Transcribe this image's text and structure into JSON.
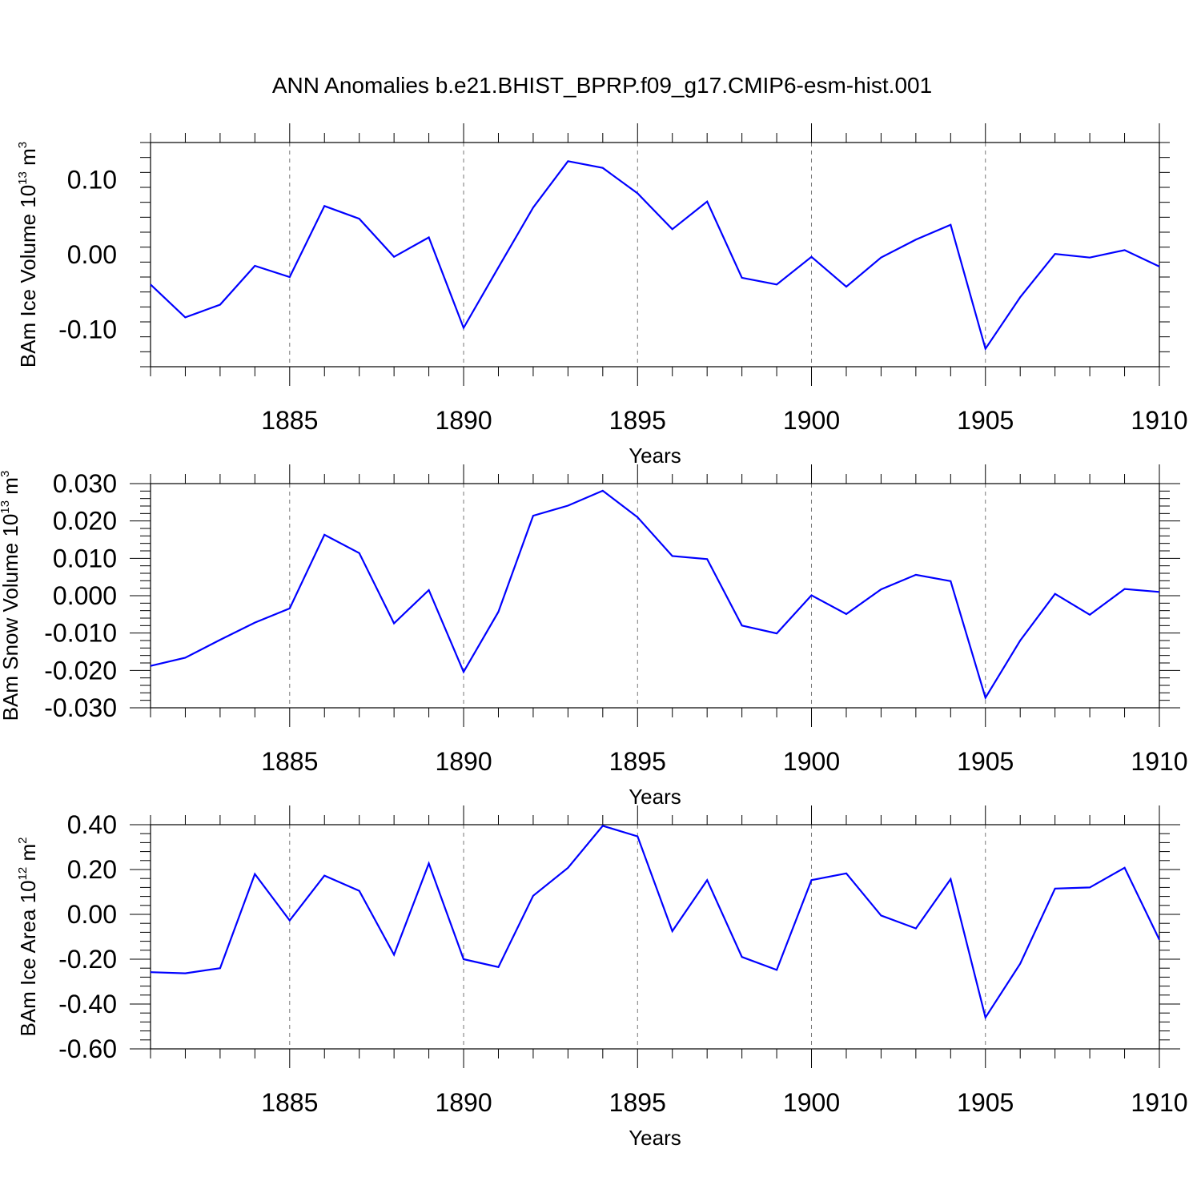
{
  "figure": {
    "title": "ANN Anomalies b.e21.BHIST_BPRP.f09_g17.CMIP6-esm-hist.001",
    "line_color": "#0000ff",
    "grid_color": "#777777"
  },
  "chart_data": [
    {
      "type": "line",
      "xlabel": "Years",
      "ylabel": {
        "text": "BAm Ice Volume 10",
        "exponent": "13",
        "unit": "m",
        "unit_exponent": "3"
      },
      "xlim": [
        1881,
        1910
      ],
      "ylim": [
        -0.15,
        0.15
      ],
      "x_ticks": [
        1885,
        1890,
        1895,
        1900,
        1905,
        1910
      ],
      "y_ticks": [
        -0.1,
        0.0,
        0.1
      ],
      "y_tick_labels": [
        "-0.10",
        "0.00",
        "0.10"
      ],
      "x_gridlines": [
        1885,
        1890,
        1895,
        1900,
        1905
      ],
      "x": [
        1881,
        1882,
        1883,
        1884,
        1885,
        1886,
        1887,
        1888,
        1889,
        1890,
        1891,
        1892,
        1893,
        1894,
        1895,
        1896,
        1897,
        1898,
        1899,
        1900,
        1901,
        1902,
        1903,
        1904,
        1905,
        1906,
        1907,
        1908,
        1909,
        1910
      ],
      "series": [
        {
          "values": [
            -0.04,
            -0.084,
            -0.067,
            -0.015,
            -0.03,
            0.065,
            0.048,
            -0.003,
            0.023,
            -0.098,
            -0.017,
            0.063,
            0.125,
            0.116,
            0.082,
            0.034,
            0.071,
            -0.031,
            -0.04,
            -0.003,
            -0.043,
            -0.004,
            0.02,
            0.04,
            -0.126,
            -0.057,
            0.001,
            -0.004,
            0.006,
            -0.016
          ]
        }
      ]
    },
    {
      "type": "line",
      "xlabel": "Years",
      "ylabel": {
        "text": "BAm Snow Volume 10",
        "exponent": "13",
        "unit": "m",
        "unit_exponent": "3"
      },
      "xlim": [
        1881,
        1910
      ],
      "ylim": [
        -0.03,
        0.03
      ],
      "x_ticks": [
        1885,
        1890,
        1895,
        1900,
        1905,
        1910
      ],
      "y_ticks": [
        -0.03,
        -0.02,
        -0.01,
        0.0,
        0.01,
        0.02,
        0.03
      ],
      "y_tick_labels": [
        "-0.030",
        "-0.020",
        "-0.010",
        "0.000",
        "0.010",
        "0.020",
        "0.030"
      ],
      "x_gridlines": [
        1885,
        1890,
        1895,
        1900,
        1905
      ],
      "x": [
        1881,
        1882,
        1883,
        1884,
        1885,
        1886,
        1887,
        1888,
        1889,
        1890,
        1891,
        1892,
        1893,
        1894,
        1895,
        1896,
        1897,
        1898,
        1899,
        1900,
        1901,
        1902,
        1903,
        1904,
        1905,
        1906,
        1907,
        1908,
        1909,
        1910
      ],
      "series": [
        {
          "values": [
            -0.0188,
            -0.0166,
            -0.0118,
            -0.0072,
            -0.0034,
            0.0163,
            0.0114,
            -0.0074,
            0.0015,
            -0.0204,
            -0.0043,
            0.0214,
            0.0241,
            0.0281,
            0.021,
            0.0106,
            0.0098,
            -0.008,
            -0.0101,
            0.0001,
            -0.0049,
            0.0017,
            0.0056,
            0.0039,
            -0.0273,
            -0.012,
            0.0005,
            -0.0051,
            0.0018,
            0.001
          ]
        }
      ]
    },
    {
      "type": "line",
      "xlabel": "Years",
      "ylabel": {
        "text": "BAm Ice Area 10",
        "exponent": "12",
        "unit": "m",
        "unit_exponent": "2"
      },
      "xlim": [
        1881,
        1910
      ],
      "ylim": [
        -0.6,
        0.4
      ],
      "x_ticks": [
        1885,
        1890,
        1895,
        1900,
        1905,
        1910
      ],
      "y_ticks": [
        -0.6,
        -0.4,
        -0.2,
        0.0,
        0.2,
        0.4
      ],
      "y_tick_labels": [
        "-0.60",
        "-0.40",
        "-0.20",
        "0.00",
        "0.20",
        "0.40"
      ],
      "x_gridlines": [
        1885,
        1890,
        1895,
        1900,
        1905
      ],
      "x": [
        1881,
        1882,
        1883,
        1884,
        1885,
        1886,
        1887,
        1888,
        1889,
        1890,
        1891,
        1892,
        1893,
        1894,
        1895,
        1896,
        1897,
        1898,
        1899,
        1900,
        1901,
        1902,
        1903,
        1904,
        1905,
        1906,
        1907,
        1908,
        1909,
        1910
      ],
      "series": [
        {
          "values": [
            -0.258,
            -0.263,
            -0.24,
            0.18,
            -0.027,
            0.173,
            0.105,
            -0.18,
            0.227,
            -0.2,
            -0.235,
            0.083,
            0.208,
            0.395,
            0.348,
            -0.075,
            0.153,
            -0.19,
            -0.248,
            0.153,
            0.183,
            -0.005,
            -0.063,
            0.157,
            -0.46,
            -0.22,
            0.115,
            0.12,
            0.208,
            -0.113
          ]
        }
      ]
    }
  ]
}
